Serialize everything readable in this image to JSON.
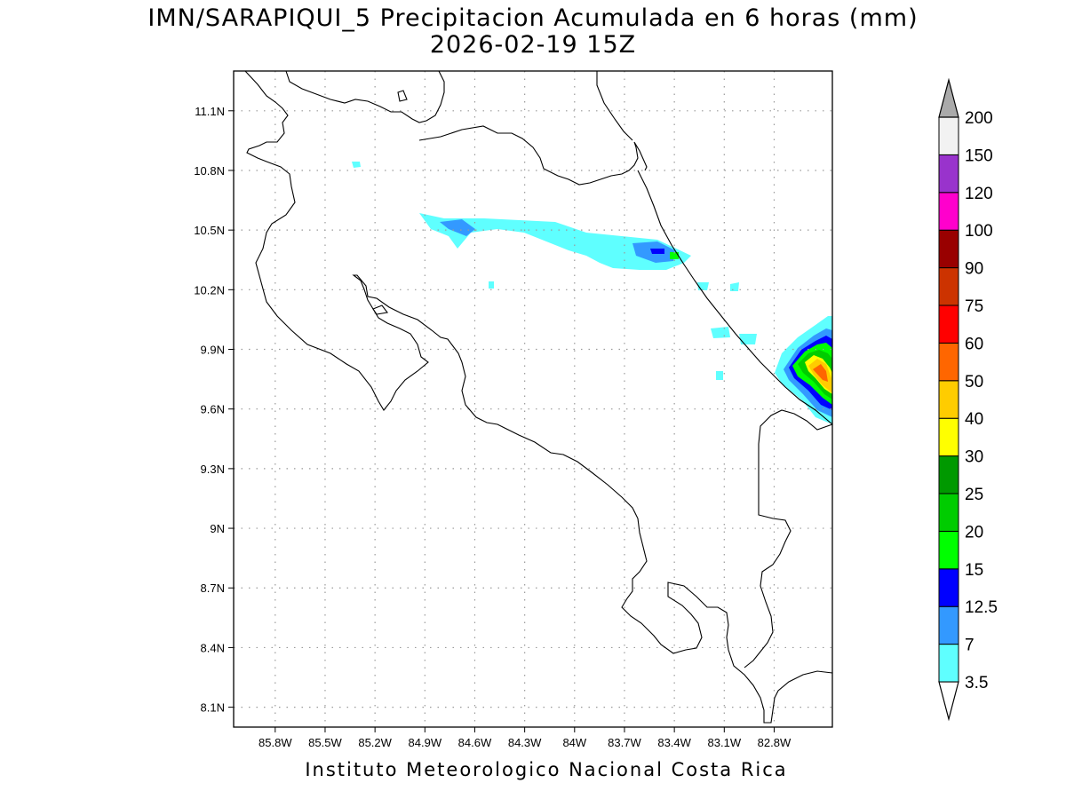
{
  "title": {
    "line1": "IMN/SARAPIQUI_5 Precipitacion Acumulada en 6 horas (mm)",
    "line2": "2026-02-19 15Z"
  },
  "credit": "Instituto Meteorologico Nacional Costa Rica",
  "map": {
    "lon_range": [
      -86.05,
      -82.45
    ],
    "lat_range": [
      8.0,
      11.3
    ],
    "lon_ticks": [
      -85.8,
      -85.5,
      -85.2,
      -84.9,
      -84.6,
      -84.3,
      -84.0,
      -83.7,
      -83.4,
      -83.1,
      -82.8
    ],
    "lon_labels": [
      "85.8W",
      "85.5W",
      "85.2W",
      "84.9W",
      "84.6W",
      "84.3W",
      "84W",
      "83.7W",
      "83.4W",
      "83.1W",
      "82.8W"
    ],
    "lat_ticks": [
      8.1,
      8.4,
      8.7,
      9.0,
      9.3,
      9.6,
      9.9,
      10.2,
      10.5,
      10.8,
      11.1
    ],
    "lat_labels": [
      "8.1N",
      "8.4N",
      "8.7N",
      "9N",
      "9.3N",
      "9.6N",
      "9.9N",
      "10.2N",
      "10.5N",
      "10.8N",
      "11.1N"
    ],
    "grid": true
  },
  "colorbar": {
    "levels": [
      "3.5",
      "7",
      "12.5",
      "15",
      "20",
      "25",
      "30",
      "40",
      "50",
      "60",
      "75",
      "90",
      "100",
      "120",
      "150",
      "200"
    ],
    "colors": [
      "#5fffff",
      "#3399ff",
      "#0000ff",
      "#00ff00",
      "#00cc00",
      "#009900",
      "#ffff00",
      "#ffcc00",
      "#ff6600",
      "#ff0000",
      "#cc3300",
      "#990000",
      "#ff00cc",
      "#9933cc",
      "#f2f2f2",
      "#aaaaaa"
    ],
    "arrows": "both"
  }
}
